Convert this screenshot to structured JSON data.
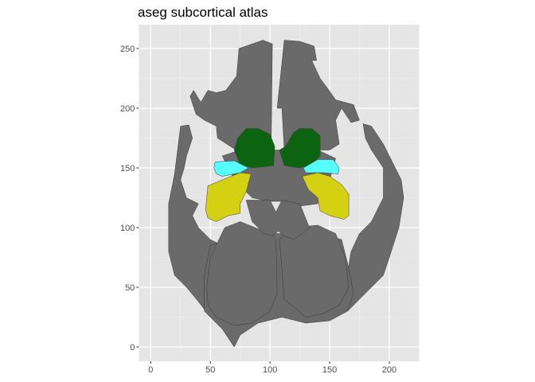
{
  "chart_data": {
    "type": "map",
    "title": "aseg subcortical atlas",
    "xlim": [
      -10,
      225
    ],
    "ylim": [
      -12,
      270
    ],
    "x_ticks": [
      0,
      50,
      100,
      150,
      200
    ],
    "y_ticks": [
      0,
      50,
      100,
      150,
      200,
      250
    ],
    "panel_background": "#e5e5e5",
    "grid": true,
    "grid_color": "#ffffff",
    "outline_color": "#3a3a3a",
    "regions": [
      {
        "fill": "#6a6a6a",
        "points": [
          [
            74,
            250
          ],
          [
            94,
            257
          ],
          [
            102,
            254
          ],
          [
            101,
            165
          ],
          [
            70,
            166
          ],
          [
            56,
            175
          ],
          [
            55,
            185
          ],
          [
            45,
            190
          ],
          [
            38,
            195
          ],
          [
            33,
            210
          ],
          [
            36,
            215
          ],
          [
            42,
            205
          ],
          [
            48,
            215
          ],
          [
            55,
            213
          ],
          [
            63,
            215
          ],
          [
            72,
            227
          ]
        ]
      },
      {
        "fill": "#6a6a6a",
        "points": [
          [
            112,
            257
          ],
          [
            125,
            256
          ],
          [
            137,
            252
          ],
          [
            139,
            240
          ],
          [
            135,
            240
          ],
          [
            142,
            225
          ],
          [
            148,
            217
          ],
          [
            155,
            207
          ],
          [
            170,
            203
          ],
          [
            175,
            190
          ],
          [
            168,
            188
          ],
          [
            160,
            200
          ],
          [
            155,
            190
          ],
          [
            158,
            170
          ],
          [
            150,
            165
          ],
          [
            112,
            165
          ],
          [
            110,
            200
          ],
          [
            106,
            200
          ]
        ]
      },
      {
        "fill": "#6a6a6a",
        "points": [
          [
            25,
            185
          ],
          [
            32,
            186
          ],
          [
            35,
            175
          ],
          [
            30,
            160
          ],
          [
            28,
            150
          ],
          [
            25,
            140
          ],
          [
            30,
            125
          ],
          [
            40,
            120
          ],
          [
            35,
            110
          ],
          [
            40,
            100
          ],
          [
            50,
            90
          ],
          [
            60,
            85
          ],
          [
            55,
            60
          ],
          [
            50,
            40
          ],
          [
            60,
            20
          ],
          [
            50,
            25
          ],
          [
            40,
            38
          ],
          [
            30,
            50
          ],
          [
            20,
            60
          ],
          [
            15,
            80
          ],
          [
            15,
            120
          ],
          [
            20,
            145
          ]
        ]
      },
      {
        "fill": "#6a6a6a",
        "points": [
          [
            178,
            187
          ],
          [
            185,
            185
          ],
          [
            195,
            170
          ],
          [
            200,
            160
          ],
          [
            210,
            140
          ],
          [
            212,
            125
          ],
          [
            208,
            100
          ],
          [
            200,
            75
          ],
          [
            195,
            60
          ],
          [
            185,
            50
          ],
          [
            175,
            40
          ],
          [
            165,
            30
          ],
          [
            163,
            50
          ],
          [
            168,
            80
          ],
          [
            175,
            95
          ],
          [
            185,
            105
          ],
          [
            195,
            125
          ],
          [
            195,
            150
          ],
          [
            185,
            165
          ],
          [
            180,
            175
          ]
        ]
      },
      {
        "fill": "#6a6a6a",
        "points": [
          [
            50,
            85
          ],
          [
            65,
            90
          ],
          [
            80,
            95
          ],
          [
            140,
            95
          ],
          [
            160,
            90
          ],
          [
            165,
            70
          ],
          [
            170,
            45
          ],
          [
            165,
            30
          ],
          [
            150,
            22
          ],
          [
            130,
            20
          ],
          [
            110,
            25
          ],
          [
            90,
            20
          ],
          [
            75,
            10
          ],
          [
            70,
            0
          ],
          [
            60,
            15
          ],
          [
            45,
            30
          ],
          [
            45,
            60
          ]
        ]
      },
      {
        "fill": "#6a6a6a",
        "points": [
          [
            60,
            160
          ],
          [
            75,
            165
          ],
          [
            140,
            165
          ],
          [
            155,
            158
          ],
          [
            150,
            140
          ],
          [
            140,
            120
          ],
          [
            125,
            118
          ],
          [
            110,
            122
          ],
          [
            100,
            122
          ],
          [
            85,
            125
          ],
          [
            70,
            140
          ]
        ]
      },
      {
        "fill": "#6a6a6a",
        "points": [
          [
            62,
            100
          ],
          [
            75,
            105
          ],
          [
            100,
            95
          ],
          [
            105,
            90
          ],
          [
            106,
            45
          ],
          [
            100,
            30
          ],
          [
            85,
            20
          ],
          [
            70,
            18
          ],
          [
            55,
            25
          ],
          [
            48,
            35
          ],
          [
            47,
            50
          ],
          [
            50,
            75
          ]
        ]
      },
      {
        "fill": "#6a6a6a",
        "points": [
          [
            108,
            90
          ],
          [
            120,
            100
          ],
          [
            140,
            102
          ],
          [
            155,
            95
          ],
          [
            163,
            75
          ],
          [
            166,
            50
          ],
          [
            158,
            35
          ],
          [
            145,
            28
          ],
          [
            130,
            25
          ],
          [
            112,
            40
          ]
        ]
      },
      {
        "fill": "#6a6a6a",
        "points": [
          [
            80,
            123
          ],
          [
            100,
            123
          ],
          [
            105,
            113
          ],
          [
            110,
            123
          ],
          [
            125,
            120
          ],
          [
            133,
            100
          ],
          [
            120,
            90
          ],
          [
            112,
            93
          ],
          [
            107,
            97
          ],
          [
            102,
            93
          ],
          [
            95,
            95
          ],
          [
            85,
            105
          ]
        ]
      },
      {
        "fill": "#0d6410",
        "points": [
          [
            73,
            175
          ],
          [
            80,
            183
          ],
          [
            90,
            183
          ],
          [
            100,
            178
          ],
          [
            104,
            168
          ],
          [
            103,
            152
          ],
          [
            85,
            150
          ],
          [
            75,
            153
          ],
          [
            70,
            165
          ]
        ]
      },
      {
        "fill": "#0d6410",
        "points": [
          [
            113,
            168
          ],
          [
            120,
            180
          ],
          [
            125,
            183
          ],
          [
            135,
            183
          ],
          [
            142,
            177
          ],
          [
            142,
            160
          ],
          [
            135,
            153
          ],
          [
            125,
            150
          ],
          [
            112,
            152
          ],
          [
            108,
            165
          ]
        ]
      },
      {
        "fill": "#55ffff",
        "points": [
          [
            54,
            155
          ],
          [
            70,
            156
          ],
          [
            82,
            150
          ],
          [
            75,
            146
          ],
          [
            60,
            143
          ],
          [
            55,
            145
          ],
          [
            53,
            150
          ]
        ]
      },
      {
        "fill": "#55ffff",
        "points": [
          [
            128,
            150
          ],
          [
            140,
            157
          ],
          [
            153,
            157
          ],
          [
            158,
            150
          ],
          [
            157,
            145
          ],
          [
            145,
            146
          ],
          [
            130,
            146
          ]
        ]
      },
      {
        "fill": "#d4d012",
        "points": [
          [
            48,
            135
          ],
          [
            65,
            142
          ],
          [
            75,
            146
          ],
          [
            84,
            145
          ],
          [
            80,
            130
          ],
          [
            75,
            120
          ],
          [
            75,
            112
          ],
          [
            65,
            110
          ],
          [
            55,
            105
          ],
          [
            48,
            108
          ],
          [
            46,
            115
          ]
        ]
      },
      {
        "fill": "#d4d012",
        "points": [
          [
            127,
            143
          ],
          [
            140,
            146
          ],
          [
            150,
            143
          ],
          [
            160,
            136
          ],
          [
            166,
            128
          ],
          [
            166,
            110
          ],
          [
            162,
            107
          ],
          [
            150,
            110
          ],
          [
            142,
            114
          ],
          [
            140,
            125
          ],
          [
            132,
            132
          ]
        ]
      }
    ]
  }
}
